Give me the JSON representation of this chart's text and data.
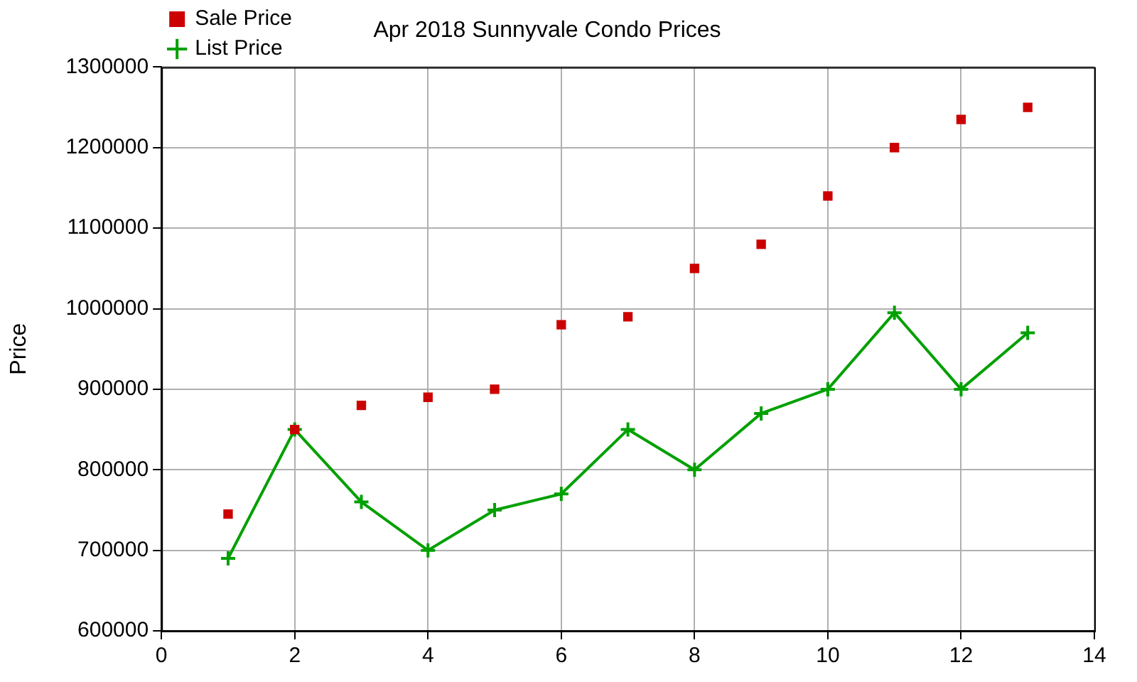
{
  "chart_data": {
    "type": "line",
    "title": "Apr 2018 Sunnyvale Condo Prices",
    "ylabel": "Price",
    "x": [
      1,
      2,
      3,
      4,
      5,
      6,
      7,
      8,
      9,
      10,
      11,
      12,
      13
    ],
    "series": [
      {
        "name": "List Price",
        "color": "#00a000",
        "marker": "cross",
        "values": [
          690000,
          850000,
          760000,
          700000,
          750000,
          770000,
          850000,
          800000,
          870000,
          900000,
          995000,
          900000,
          970000
        ]
      },
      {
        "name": "Sale Price",
        "type": "scatter",
        "color": "#cc0000",
        "marker": "square",
        "values": [
          745000,
          850000,
          880000,
          890000,
          900000,
          980000,
          990000,
          1050000,
          1080000,
          1140000,
          1200000,
          1235000,
          1250000
        ]
      }
    ],
    "xlim": [
      0,
      14
    ],
    "xticks": [
      0,
      2,
      4,
      6,
      8,
      10,
      12,
      14
    ],
    "ylim": [
      600000,
      1300000
    ],
    "yticks": [
      600000,
      700000,
      800000,
      900000,
      1000000,
      1100000,
      1200000,
      1300000
    ],
    "grid": true,
    "legend": "top left"
  }
}
